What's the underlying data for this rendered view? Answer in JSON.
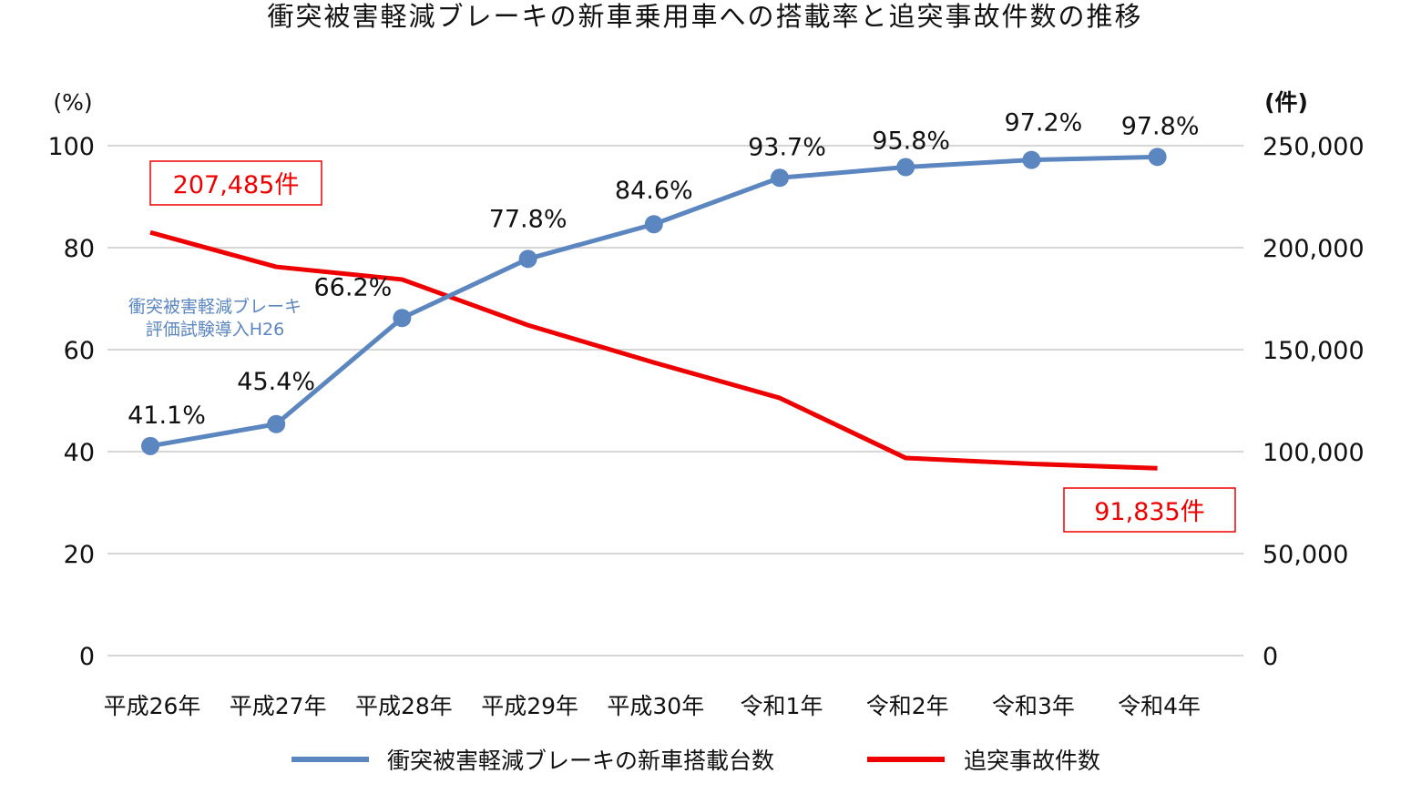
{
  "chart_data": {
    "type": "line",
    "title": "衝突被害軽減ブレーキの新車乗用車への搭載率と追突事故件数の推移",
    "categories": [
      "平成26年",
      "平成27年",
      "平成28年",
      "平成29年",
      "平成30年",
      "令和1年",
      "令和2年",
      "令和3年",
      "令和4年"
    ],
    "left_axis": {
      "unit_label": "(%)",
      "ylim": [
        0,
        100
      ],
      "ticks": [
        "0",
        "20",
        "40",
        "60",
        "80",
        "100"
      ]
    },
    "right_axis": {
      "unit_label": "(件)",
      "ylim": [
        0,
        250000
      ],
      "ticks": [
        "0",
        "50,000",
        "100,000",
        "150,000",
        "200,000",
        "250,000"
      ]
    },
    "grid": true,
    "legend_position": "bottom",
    "series": [
      {
        "name": "衝突被害軽減ブレーキの新車搭載台数",
        "axis": "left",
        "color": "#5b86bf",
        "markers": true,
        "values": [
          41.1,
          45.4,
          66.2,
          77.8,
          84.6,
          93.7,
          95.8,
          97.2,
          97.8
        ],
        "data_labels": [
          "41.1%",
          "45.4%",
          "66.2%",
          "77.8%",
          "84.6%",
          "93.7%",
          "95.8%",
          "97.2%",
          "97.8%"
        ]
      },
      {
        "name": "追突事故件数",
        "axis": "right",
        "color": "#ee0000",
        "markers": false,
        "values": [
          207485,
          190600,
          184400,
          162000,
          143700,
          126300,
          96900,
          94000,
          91835
        ]
      }
    ],
    "annotations": {
      "first_count": "207,485件",
      "last_count": "91,835件",
      "note_line1": "衝突被害軽減ブレーキ",
      "note_line2": "評価試験導入H26"
    }
  }
}
